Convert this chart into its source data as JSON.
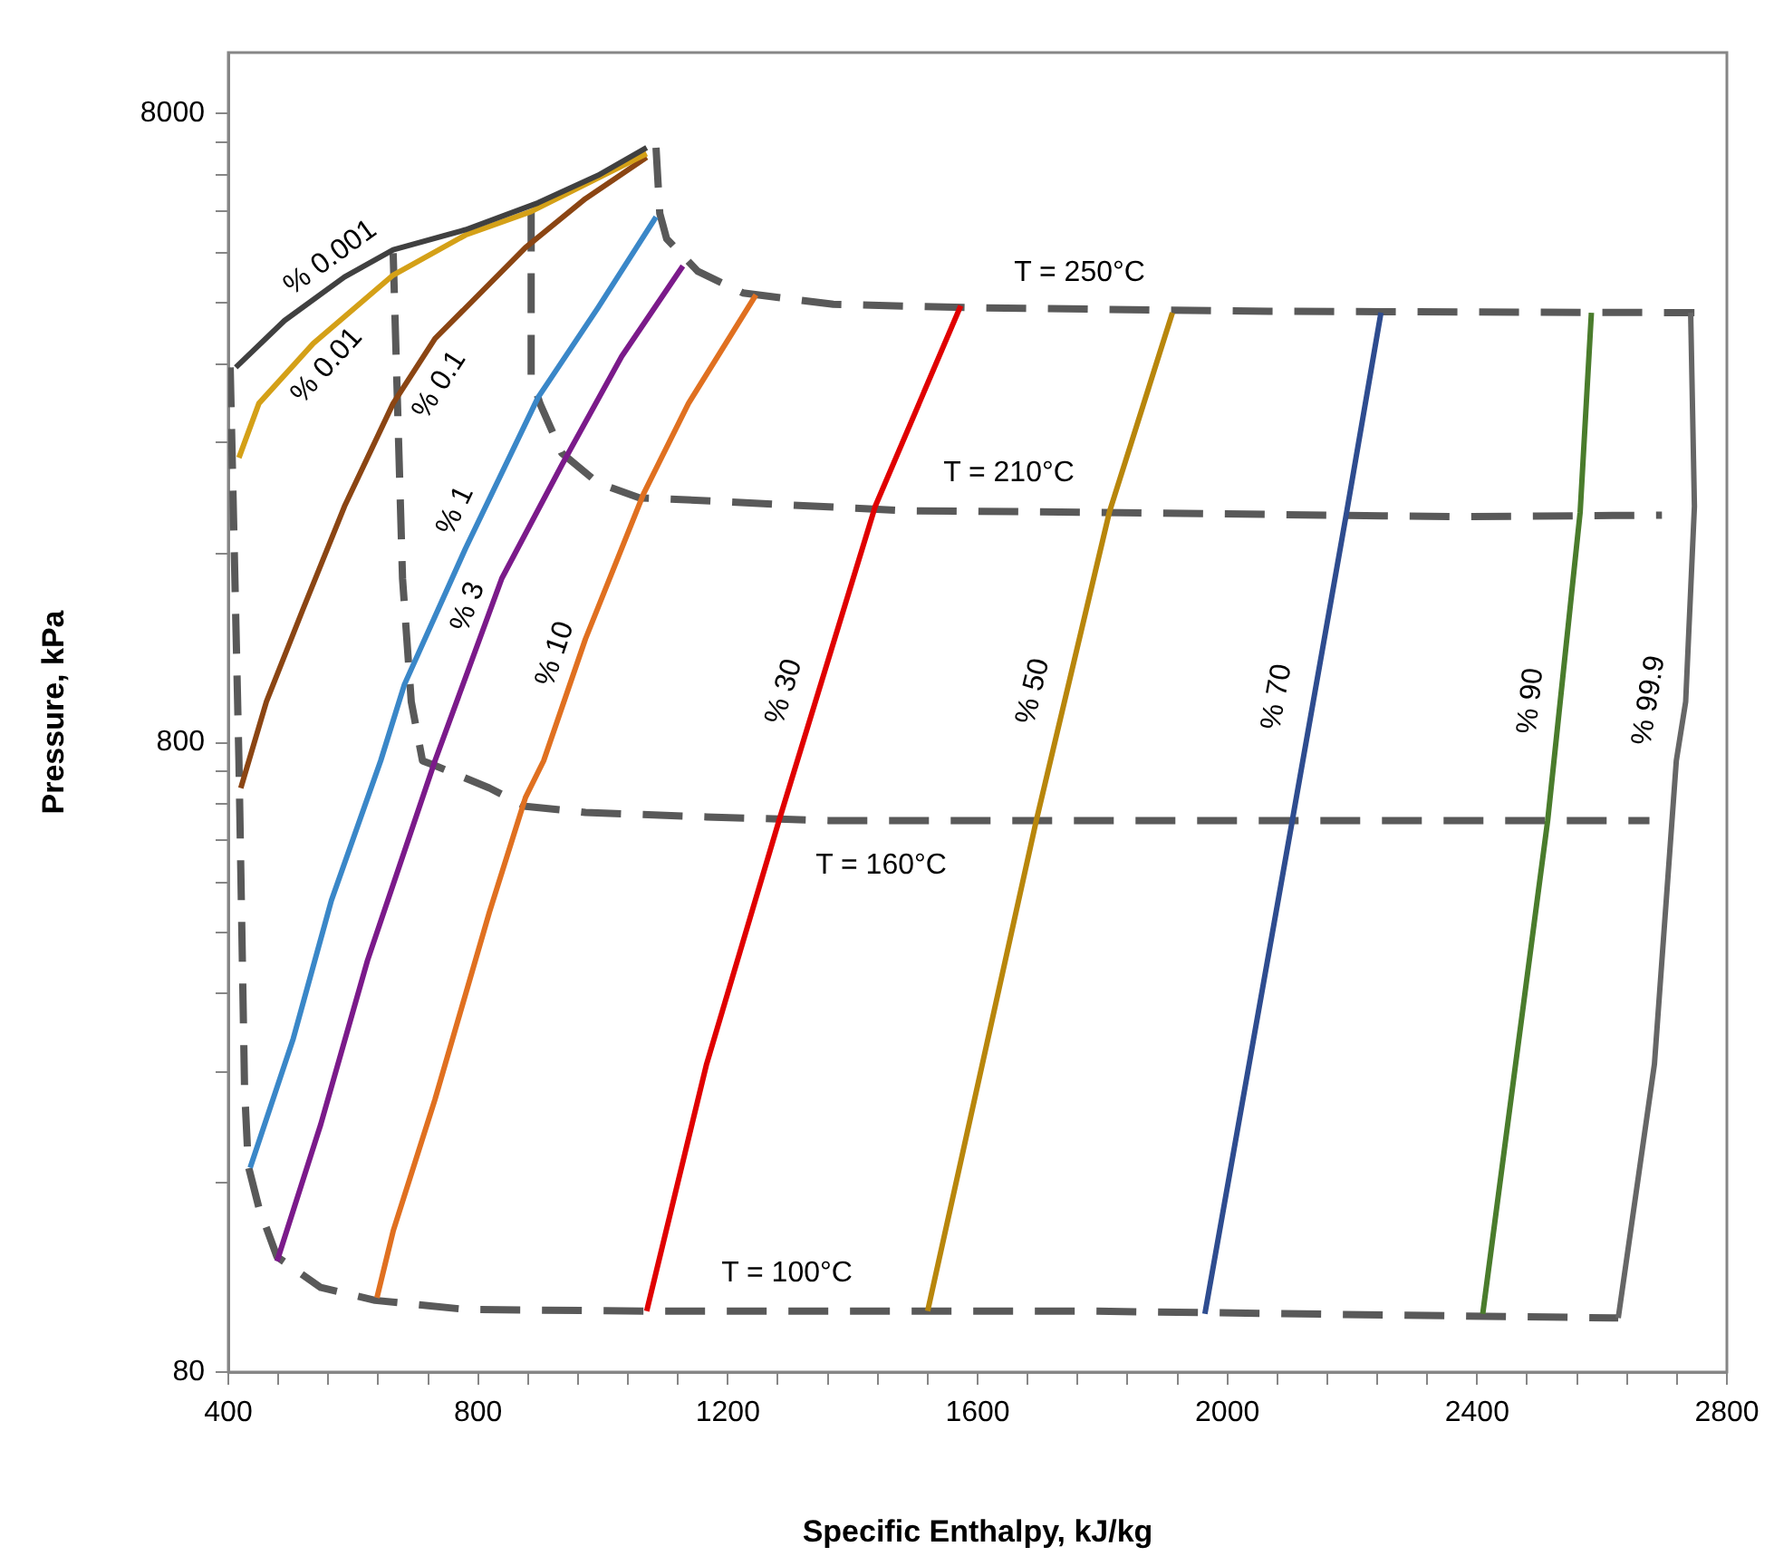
{
  "chart_data": {
    "type": "line",
    "xlabel": "Specific Enthalpy, kJ/kg",
    "ylabel": "Pressure, kPa",
    "log": "y",
    "marker": "none",
    "grid": false,
    "legend": false,
    "xlim": [
      400,
      2800
    ],
    "ylim": [
      80,
      10000
    ],
    "xticks": [
      400,
      {
        "value": 480,
        "label": null
      },
      {
        "value": 560,
        "label": null
      },
      {
        "value": 640,
        "label": null
      },
      {
        "value": 720,
        "label": null
      },
      800,
      {
        "value": 880,
        "label": null
      },
      {
        "value": 960,
        "label": null
      },
      {
        "value": 1040,
        "label": null
      },
      {
        "value": 1120,
        "label": null
      },
      1200,
      {
        "value": 1280,
        "label": null
      },
      {
        "value": 1360,
        "label": null
      },
      {
        "value": 1440,
        "label": null
      },
      {
        "value": 1520,
        "label": null
      },
      1600,
      {
        "value": 1680,
        "label": null
      },
      {
        "value": 1760,
        "label": null
      },
      {
        "value": 1840,
        "label": null
      },
      {
        "value": 1920,
        "label": null
      },
      2000,
      {
        "value": 2080,
        "label": null
      },
      {
        "value": 2160,
        "label": null
      },
      {
        "value": 2240,
        "label": null
      },
      {
        "value": 2320,
        "label": null
      },
      2400,
      {
        "value": 2480,
        "label": null
      },
      {
        "value": 2560,
        "label": null
      },
      {
        "value": 2640,
        "label": null
      },
      {
        "value": 2720,
        "label": null
      },
      2800
    ],
    "yticks": [
      80,
      {
        "value": 160,
        "label": null
      },
      {
        "value": 240,
        "label": null
      },
      {
        "value": 320,
        "label": null
      },
      {
        "value": 400,
        "label": null
      },
      {
        "value": 480,
        "label": null
      },
      {
        "value": 560,
        "label": null
      },
      {
        "value": 640,
        "label": null
      },
      {
        "value": 720,
        "label": null
      },
      800,
      {
        "value": 1600,
        "label": null
      },
      {
        "value": 2400,
        "label": null
      },
      {
        "value": 3200,
        "label": null
      },
      {
        "value": 4000,
        "label": null
      },
      {
        "value": 4800,
        "label": null
      },
      {
        "value": 5600,
        "label": null
      },
      {
        "value": 6400,
        "label": null
      },
      {
        "value": 7200,
        "label": null
      },
      8000
    ],
    "series": [
      {
        "name": "% 0.001",
        "color": "#404040",
        "line_style": "solid",
        "x": [
          412,
          490,
          586,
          664,
          780,
          896,
          992,
          1070
        ],
        "values": [
          3160,
          3750,
          4400,
          4860,
          5230,
          5770,
          6380,
          7060
        ]
      },
      {
        "name": "% 0.01",
        "color": "#d4a017",
        "line_style": "solid",
        "x": [
          417,
          449,
          536,
          664,
          780,
          885,
          1070
        ],
        "values": [
          2270,
          2770,
          3450,
          4430,
          5130,
          5590,
          6910
        ]
      },
      {
        "name": "% 0.1",
        "color": "#8b4513",
        "line_style": "solid",
        "x": [
          420,
          461,
          519,
          586,
          664,
          731,
          876,
          972,
          1070
        ],
        "values": [
          678,
          930,
          1300,
          1900,
          2770,
          3510,
          4900,
          5860,
          6820
        ]
      },
      {
        "name": "% 1",
        "color": "#3a87c8",
        "line_style": "solid",
        "x": [
          435,
          504,
          565,
          644,
          682,
          780,
          896,
          992,
          1085
        ],
        "values": [
          169,
          271,
          449,
          749,
          990,
          1630,
          2830,
          3930,
          5480
        ]
      },
      {
        "name": "% 3",
        "color": "#7b1a8a",
        "line_style": "solid",
        "x": [
          478,
          548,
          623,
          731,
          838,
          934,
          1030,
          1128
        ],
        "values": [
          120,
          198,
          361,
          749,
          1460,
          2210,
          3290,
          4580
        ]
      },
      {
        "name": "% 10",
        "color": "#e07020",
        "line_style": "solid",
        "x": [
          638,
          664,
          731,
          818,
          876,
          905,
          972,
          1065,
          1137,
          1245
        ],
        "values": [
          105,
          134,
          217,
          430,
          655,
          749,
          1170,
          1990,
          2770,
          4120
        ]
      },
      {
        "name": "% 30",
        "color": "#e00000",
        "line_style": "solid",
        "x": [
          1070,
          1166,
          1282,
          1436,
          1573
        ],
        "values": [
          100,
          247,
          602,
          1900,
          3960
        ]
      },
      {
        "name": "% 50",
        "color": "#b8860b",
        "line_style": "solid",
        "x": [
          1520,
          1694,
          1811,
          1912
        ],
        "values": [
          100,
          602,
          1860,
          3860
        ]
      },
      {
        "name": "% 70",
        "color": "#2e4c8f",
        "line_style": "solid",
        "x": [
          1964,
          2104,
          2191,
          2246
        ],
        "values": [
          99,
          602,
          1860,
          3860
        ]
      },
      {
        "name": "% 90",
        "color": "#4a7c2c",
        "line_style": "solid",
        "x": [
          2409,
          2513,
          2565,
          2583
        ],
        "values": [
          99,
          602,
          1860,
          3860
        ]
      },
      {
        "name": "% 99.9",
        "color": "#666666",
        "line_style": "solid",
        "x": [
          2626,
          2684,
          2719,
          2734,
          2748,
          2742
        ],
        "values": [
          97.5,
          247,
          749,
          930,
          1900,
          3860
        ]
      },
      {
        "name": "T = 250°C",
        "color": "#595959",
        "line_style": "dashed",
        "x": [
          1085,
          1091,
          1102,
          1152,
          1224,
          1369,
          1602,
          2066,
          2748
        ],
        "values": [
          7060,
          5550,
          5060,
          4490,
          4150,
          3980,
          3930,
          3880,
          3860
        ]
      },
      {
        "name": "T = 210°C",
        "color": "#595959",
        "line_style": "dashed",
        "x": [
          885,
          885,
          899,
          934,
          992,
          1059,
          1117,
          1486,
          1776,
          2356,
          2696
        ],
        "values": [
          5590,
          3070,
          2770,
          2310,
          2070,
          1960,
          1950,
          1870,
          1860,
          1830,
          1840
        ]
      },
      {
        "name": "T = 160°C",
        "color": "#595959",
        "line_style": "dashed",
        "x": [
          664,
          679,
          693,
          711,
          731,
          818,
          876,
          972,
          1166,
          1361,
          1776,
          2356,
          2676
        ],
        "values": [
          4800,
          1460,
          930,
          749,
          736,
          678,
          634,
          620,
          610,
          602,
          602,
          602,
          602
        ]
      },
      {
        "name": "T = 100°C",
        "color": "#595959",
        "line_style": "dashed",
        "x": [
          403,
          417,
          426,
          432,
          449,
          478,
          548,
          635,
          780,
          1070,
          1776,
          2626
        ],
        "values": [
          3160,
          749,
          226,
          170,
          146,
          122,
          109,
          104,
          100.6,
          100,
          100,
          97.5
        ]
      }
    ]
  }
}
